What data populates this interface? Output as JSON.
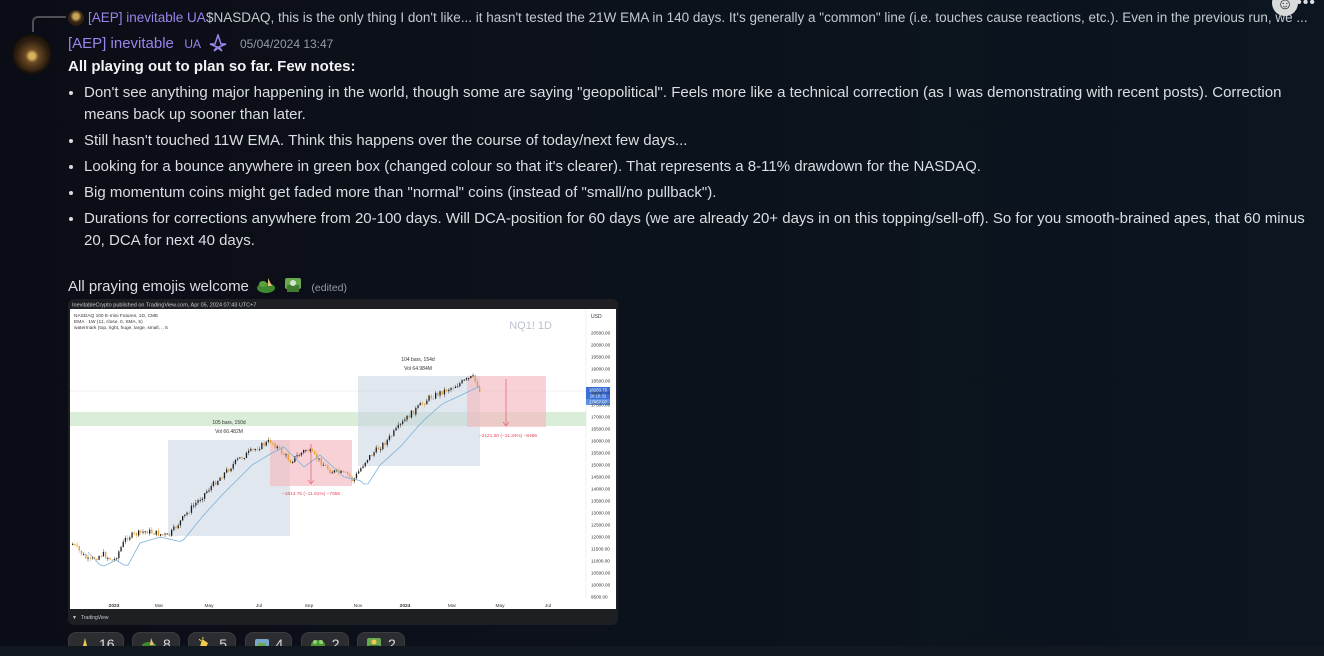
{
  "reply": {
    "author": "[AEP] inevitable UA",
    "text": "$NASDAQ, this is the only thing I don't like... it hasn't tested the 21W EMA in 140 days. It's generally a \"common\" line (i.e. touches cause reactions, etc.). Even in the previous run, we ..."
  },
  "toolbar": {
    "emoji_icon": "emoji-face-icon",
    "more_icon": "more-dots-icon"
  },
  "message": {
    "author": "[AEP] inevitable",
    "role_tag": "UA",
    "badge_icon": "rank-badge-icon",
    "timestamp": "05/04/2024 13:47",
    "heading": "All playing out to plan so far. Few notes:",
    "bullets": [
      "Don't see anything major happening in the world, though some are saying \"geopolitical\". Feels more like a technical correction (as I was demonstrating with recent posts). Correction means back up sooner than later.",
      "Still hasn't touched 11W EMA. Think this happens over the course of today/next few days...",
      "Looking for a bounce anywhere in green box (changed colour so that it's clearer). That represents a 8-11% drawdown for the NASDAQ.",
      "Big momentum coins might get faded more than \"normal\" coins (instead of \"small/no pullback\").",
      "Durations for corrections anywhere from 20-100 days. Will DCA-position for 60 days (we are already 20+ days in on this topping/sell-off). So for you smooth-brained apes, that 60 minus 20, DCA for next 40 days."
    ],
    "closing": "All praying emojis welcome",
    "edited": "(edited)"
  },
  "chart": {
    "published_by": "InevitableCrypto published on TradingView.com, Apr 05, 2024 07:43 UTC+7",
    "symbol_line": "NASDAQ 100 E-mini Futures, 1D, CME",
    "ema_line": "EMA · 1W (11, close, 0, SMA, 5)",
    "watermark_line": "watermark (top, right, huge, large, small, ., 5",
    "watermark": "NQ1! 1D",
    "currency": "USD",
    "y_ticks": [
      "20500.00",
      "20000.00",
      "19500.00",
      "19000.00",
      "18500.00",
      "18000.00",
      "17500.00",
      "17000.00",
      "16500.00",
      "16000.00",
      "15500.00",
      "15000.00",
      "14500.00",
      "14000.00",
      "13500.00",
      "13000.00",
      "12500.00",
      "12000.00",
      "11500.00",
      "11000.00",
      "10500.00",
      "10000.00",
      "9500.00"
    ],
    "x_ticks": [
      "2023",
      "Mar",
      "May",
      "Jul",
      "Sep",
      "Nov",
      "2024",
      "Mar",
      "May",
      "Jul"
    ],
    "price_labels": [
      "18283.75",
      "20:16:32",
      "17957.07"
    ],
    "box1_label1": "105 bars, 150d",
    "box1_label2": "Vol 66.482M",
    "box1_drop": "−1813.75 (−11.91%) −7655",
    "box2_label1": "104 bars, 154d",
    "box2_label2": "Vol 64.984M",
    "box2_drop": "−2121.50 (−11.34%) −8486",
    "footer": "TradingView"
  },
  "reactions": [
    {
      "icon": "pray-emoji-icon",
      "count": "16"
    },
    {
      "icon": "pepe-pray-emoji-icon",
      "count": "8"
    },
    {
      "icon": "clap-emoji-icon",
      "count": "5"
    },
    {
      "icon": "atm-cash-emoji-icon",
      "count": "4"
    },
    {
      "icon": "frog-emoji-icon",
      "count": "2"
    },
    {
      "icon": "pepe-cash-emoji-icon",
      "count": "2"
    }
  ],
  "colors": {
    "author": "#9b84ec",
    "green_zone": "#cfe8cf",
    "blue_box": "#c9d4e2",
    "red_box": "#f3b9bf",
    "candle_up": "#1d1d1d",
    "candle_down": "#e49a2c",
    "ema": "#7ab3d8"
  }
}
